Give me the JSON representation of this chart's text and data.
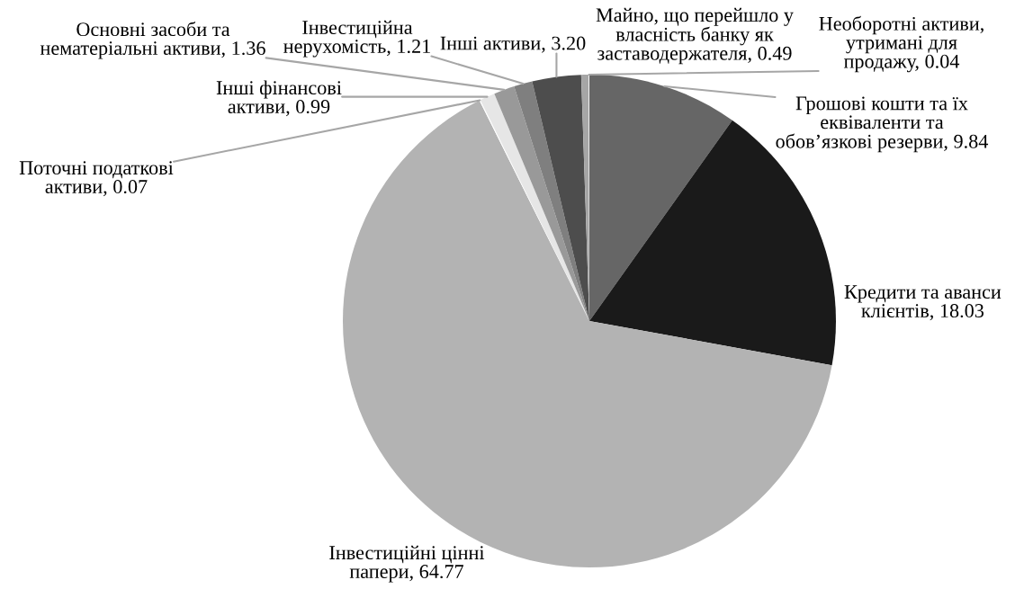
{
  "chart_data": {
    "type": "pie",
    "categories": [
      "Грошові кошти та їх еквіваленти та обов’язкові резерви",
      "Кредити та аванси клієнтів",
      "Інвестиційні цінні папери",
      "Поточні податкові активи",
      "Інші фінансові активи",
      "Основні засоби та нематеріальні активи",
      "Інвестиційна нерухомість",
      "Інші активи",
      "Майно, що перейшло у власність банку як заставодержателя",
      "Необоротні активи, утримані для продажу"
    ],
    "values": [
      9.84,
      18.03,
      64.77,
      0.07,
      0.99,
      1.36,
      1.21,
      3.2,
      0.49,
      0.04
    ],
    "colors": [
      "#666666",
      "#1a1a1a",
      "#b3b3b3",
      "#ffffff",
      "#e6e6e6",
      "#999999",
      "#7f7f7f",
      "#4d4d4d",
      "#a6a6a6",
      "#ffffff"
    ],
    "value_labels": [
      "9.84",
      "18.03",
      "64.77",
      "0.07",
      "0.99",
      "1.36",
      "1.21",
      "3.20",
      "0.49",
      "0.04"
    ]
  }
}
